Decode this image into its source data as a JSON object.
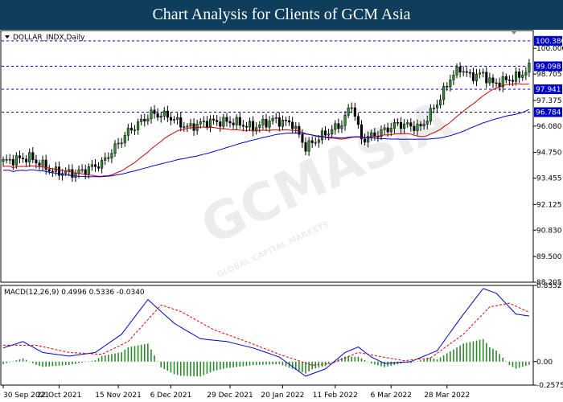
{
  "header": {
    "title": "Chart Analysis for Clients of GCM Asia"
  },
  "watermark": {
    "text": "GCMASIA",
    "sub": "GLOBAL CAPITAL MARKETS"
  },
  "chart_data": [
    {
      "type": "candlestick",
      "symbol_label": "DOLLAR_INDX,Daily",
      "ylim": [
        88.205,
        100.9
      ],
      "y_ticks": [
        "100.000",
        "98.705",
        "97.375",
        "96.080",
        "94.750",
        "93.455",
        "92.125",
        "90.830",
        "89.500",
        "88.205"
      ],
      "y_tick_values": [
        100.0,
        98.705,
        97.375,
        96.08,
        94.75,
        93.455,
        92.125,
        90.83,
        89.5,
        88.205
      ],
      "levels": [
        {
          "label": "100.380",
          "value": 100.38,
          "style": "dashed",
          "color": "#0000cc"
        },
        {
          "label": "99.098",
          "value": 99.098,
          "style": "dashed",
          "color": "#0000cc"
        },
        {
          "label": "97.941",
          "value": 97.941,
          "style": "dashed",
          "color": "#0000cc"
        },
        {
          "label": "96.784",
          "value": 96.784,
          "style": "dashed",
          "color": "#0000cc"
        }
      ],
      "price_anchors": [
        [
          0,
          94.3
        ],
        [
          8,
          94.5
        ],
        [
          15,
          93.8
        ],
        [
          22,
          93.7
        ],
        [
          30,
          94.2
        ],
        [
          38,
          95.8
        ],
        [
          45,
          96.7
        ],
        [
          50,
          96.6
        ],
        [
          56,
          96.0
        ],
        [
          62,
          96.3
        ],
        [
          70,
          96.3
        ],
        [
          76,
          96.0
        ],
        [
          82,
          96.4
        ],
        [
          88,
          96.2
        ],
        [
          92,
          95.0
        ],
        [
          97,
          95.6
        ],
        [
          103,
          96.2
        ],
        [
          106,
          97.2
        ],
        [
          109,
          95.4
        ],
        [
          114,
          95.7
        ],
        [
          120,
          96.2
        ],
        [
          127,
          96.0
        ],
        [
          133,
          97.5
        ],
        [
          136,
          98.5
        ],
        [
          139,
          99.0
        ],
        [
          142,
          98.6
        ],
        [
          146,
          98.7
        ],
        [
          149,
          98.2
        ],
        [
          153,
          98.4
        ],
        [
          157,
          98.6
        ],
        [
          160,
          99.0
        ]
      ],
      "bar_count": 161,
      "ma_fast_color": "#cc0000",
      "ma_slow_color": "#0000cc",
      "x_ticks": [
        "30 Sep 2021",
        "22 Oct 2021",
        "15 Nov 2021",
        "6 Dec 2021",
        "29 Dec 2021",
        "20 Jan 2022",
        "11 Feb 2022",
        "6 Mar 2022",
        "28 Mar 2022"
      ],
      "x_tick_bars": [
        0,
        17,
        35,
        51,
        69,
        85,
        101,
        118,
        135
      ]
    },
    {
      "type": "macd",
      "label": "MACD(12,26,9) 0.4996 0.5336 -0.0340",
      "ylim": [
        -0.2575,
        0.8352
      ],
      "y_ticks": [
        "0.8352",
        "0.00",
        "-0.2575"
      ],
      "y_tick_values": [
        0.8352,
        0.0,
        -0.2575
      ],
      "macd_anchors": [
        [
          0,
          0.15
        ],
        [
          6,
          0.22
        ],
        [
          12,
          0.1
        ],
        [
          20,
          0.06
        ],
        [
          28,
          0.1
        ],
        [
          36,
          0.3
        ],
        [
          44,
          0.68
        ],
        [
          52,
          0.42
        ],
        [
          60,
          0.25
        ],
        [
          68,
          0.22
        ],
        [
          76,
          0.15
        ],
        [
          84,
          0.05
        ],
        [
          92,
          -0.16
        ],
        [
          98,
          -0.08
        ],
        [
          104,
          0.1
        ],
        [
          108,
          0.16
        ],
        [
          112,
          0.05
        ],
        [
          116,
          -0.02
        ],
        [
          124,
          0.0
        ],
        [
          132,
          0.12
        ],
        [
          140,
          0.52
        ],
        [
          146,
          0.8
        ],
        [
          150,
          0.75
        ],
        [
          156,
          0.52
        ],
        [
          160,
          0.5
        ]
      ],
      "signal_anchors": [
        [
          0,
          0.18
        ],
        [
          10,
          0.18
        ],
        [
          20,
          0.1
        ],
        [
          30,
          0.08
        ],
        [
          38,
          0.22
        ],
        [
          48,
          0.62
        ],
        [
          54,
          0.55
        ],
        [
          64,
          0.35
        ],
        [
          74,
          0.22
        ],
        [
          84,
          0.08
        ],
        [
          94,
          -0.04
        ],
        [
          100,
          -0.02
        ],
        [
          108,
          0.1
        ],
        [
          114,
          0.06
        ],
        [
          122,
          0.01
        ],
        [
          130,
          0.04
        ],
        [
          140,
          0.3
        ],
        [
          148,
          0.6
        ],
        [
          154,
          0.64
        ],
        [
          160,
          0.54
        ]
      ],
      "macd_color": "#0000cc",
      "signal_color": "#dd0000",
      "hist_color": "#2a8a2a"
    }
  ]
}
